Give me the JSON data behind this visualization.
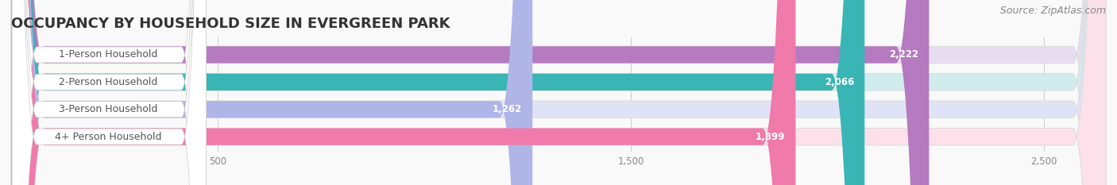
{
  "title": "OCCUPANCY BY HOUSEHOLD SIZE IN EVERGREEN PARK",
  "source": "Source: ZipAtlas.com",
  "categories": [
    "1-Person Household",
    "2-Person Household",
    "3-Person Household",
    "4+ Person Household"
  ],
  "values": [
    2222,
    2066,
    1262,
    1899
  ],
  "bar_colors": [
    "#b57abf",
    "#3ab5b5",
    "#b0b5e8",
    "#f07aaa"
  ],
  "bar_bg_colors": [
    "#e8ddf0",
    "#d0ecec",
    "#e0e3f5",
    "#fce0ea"
  ],
  "label_bg_color": "#f5f5f5",
  "xlim_max": 2650,
  "xticks": [
    500,
    1500,
    2500
  ],
  "value_labels": [
    "2,222",
    "2,066",
    "1,262",
    "1,899"
  ],
  "title_fontsize": 13,
  "label_fontsize": 9,
  "value_fontsize": 8.5,
  "source_fontsize": 9,
  "text_color": "#555555",
  "grid_color": "#cccccc",
  "value_label_inside_color": "#ffffff",
  "value_label_outside_color": "#555555"
}
